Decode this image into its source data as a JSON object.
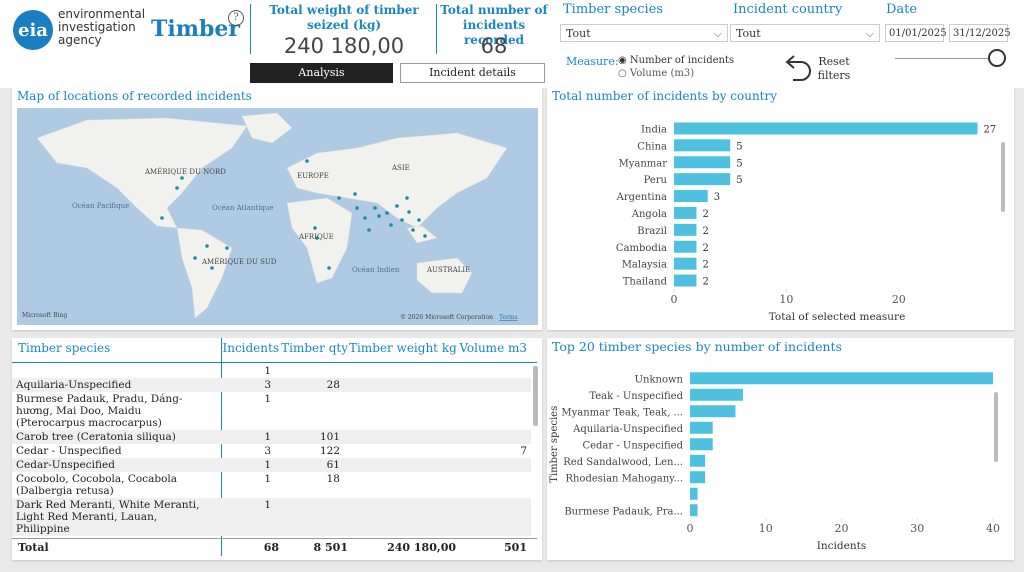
{
  "header": {
    "logo": "eia",
    "org_lines": [
      "environmental",
      "investigation",
      "agency"
    ],
    "title": "Timber",
    "help": "?"
  },
  "kpis": [
    {
      "title": "Total weight of timber seized (kg)",
      "value": "240 180,00"
    },
    {
      "title": "Total number of incidents recorded",
      "value": "68"
    }
  ],
  "tabs": [
    "Analysis",
    "Incident details"
  ],
  "filters": {
    "species": {
      "label": "Timber species",
      "value": "Tout"
    },
    "country": {
      "label": "Incident country",
      "value": "Tout"
    },
    "date": {
      "label": "Date",
      "from": "01/01/2025",
      "to": "31/12/2025"
    },
    "measure": {
      "label": "Measure:",
      "options": [
        "Number of incidents",
        "Volume (m3)"
      ]
    },
    "reset": "Reset filters"
  },
  "map": {
    "title": "Map of locations of recorded incidents",
    "labels": [
      "AMÉRIQUE DU NORD",
      "EUROPE",
      "ASIE",
      "Océan Pacifique",
      "Océan Atlantique",
      "AFRIQUE",
      "AMÉRIQUE DU SUD",
      "Océan Indien",
      "AUSTRALIE"
    ],
    "copyright": "© 2026 Microsoft Corporation",
    "terms": "Terms",
    "provider": "Microsoft Bing"
  },
  "table": {
    "columns": [
      "Timber species",
      "Incidents",
      "Timber qty",
      "Timber weight kg",
      "Volume m3"
    ],
    "rows": [
      [
        null,
        1,
        null,
        null,
        null
      ],
      [
        "Aquilaria-Unspecified",
        3,
        28,
        null,
        null
      ],
      [
        "Burmese Padauk, Pradu, Dáng-hương, Mai Doo, Maidu (Pterocarpus macrocarpus)",
        1,
        null,
        null,
        null
      ],
      [
        "Carob tree (Ceratonia siliqua)",
        1,
        101,
        null,
        null
      ],
      [
        "Cedar - Unspecified",
        3,
        122,
        null,
        7
      ],
      [
        "Cedar-Unspecified",
        1,
        61,
        null,
        null
      ],
      [
        "Cocobolo, Cocobola, Cocabola (Dalbergia retusa)",
        1,
        18,
        null,
        null
      ],
      [
        "Dark Red Meranti, White Meranti, Light Red Meranti, Lauan, Philippine",
        1,
        null,
        null,
        null
      ]
    ],
    "total": [
      "Total",
      68,
      "8 501",
      "240 180,00",
      501
    ]
  },
  "chart_data": [
    {
      "type": "bar",
      "orientation": "horizontal",
      "title": "Total number of incidents by country",
      "xlabel": "Total of selected measure",
      "categories": [
        "India",
        "China",
        "Myanmar",
        "Peru",
        "Argentina",
        "Angola",
        "Brazil",
        "Cambodia",
        "Malaysia",
        "Thailand"
      ],
      "values": [
        27,
        5,
        5,
        5,
        3,
        2,
        2,
        2,
        2,
        2
      ],
      "color": "#4fc0e0",
      "data_labels": true,
      "xlim": [
        0,
        29
      ],
      "xticks": [
        0,
        10,
        20
      ]
    },
    {
      "type": "bar",
      "orientation": "horizontal",
      "title": "Top 20 timber species by number of incidents",
      "xlabel": "Incidents",
      "ylabel": "Timber species",
      "categories": [
        "Unknown",
        "Teak - Unspecified",
        "Myanmar Teak, Teak, ...",
        "Aquilaria-Unspecified",
        "Cedar - Unspecified",
        "Red Sandalwood, Len...",
        "Rhodesian Mahogany...",
        null,
        "Burmese Padauk, Pra..."
      ],
      "values": [
        40,
        7,
        6,
        3,
        3,
        2,
        2,
        1,
        1
      ],
      "color": "#4fc0e0",
      "data_labels": false,
      "xlim": [
        0,
        40
      ],
      "xticks": [
        0,
        10,
        20,
        30,
        40
      ]
    }
  ]
}
